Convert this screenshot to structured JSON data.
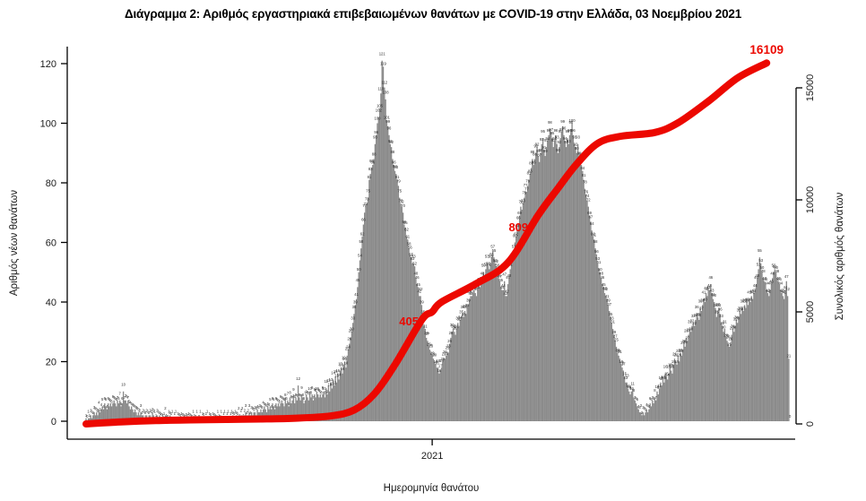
{
  "title": "Διάγραμμα 2: Αριθμός εργαστηριακά επιβεβαιωμένων θανάτων με COVID-19 στην Ελλάδα, 03 Νοεμβρίου 2021",
  "colors": {
    "bar": "#8a8a8a",
    "bar_label": "#2a2a2a",
    "line": "#ec0800",
    "annotation": "#ec0800",
    "axis": "#000000",
    "tick_text": "#1a1a1a"
  },
  "chart_data": {
    "type": "bar",
    "combo": "daily bars (left axis) + cumulative smooth line (right axis)",
    "x_axis": {
      "label": "Ημερομηνία θανάτου",
      "start": "2020-03",
      "end": "2021-11-03",
      "ticks": [
        {
          "label": "2021",
          "day": 297
        }
      ]
    },
    "left_axis": {
      "label": "Αριθμός νέων θανάτων",
      "ticks": [
        0,
        20,
        40,
        60,
        80,
        100,
        120
      ],
      "range": [
        0,
        126
      ]
    },
    "right_axis": {
      "label": "Συνολικός αριθμός θανάτων",
      "ticks": [
        0,
        5000,
        10000,
        15000
      ],
      "range": [
        0,
        16800
      ]
    },
    "bars": {
      "name": "Αριθμός νέων θανάτων (daily, estimated from plot)",
      "values": [
        1,
        0,
        1,
        1,
        2,
        1,
        2,
        3,
        2,
        3,
        2,
        4,
        3,
        4,
        5,
        4,
        6,
        5,
        4,
        6,
        5,
        6,
        5,
        6,
        7,
        6,
        5,
        7,
        6,
        7,
        5,
        6,
        10,
        7,
        7,
        6,
        7,
        5,
        4,
        5,
        4,
        3,
        4,
        3,
        2,
        3,
        2,
        3,
        2,
        2,
        1,
        2,
        2,
        1,
        2,
        2,
        1,
        3,
        2,
        1,
        1,
        2,
        1,
        2,
        1,
        0,
        1,
        1,
        2,
        1,
        0,
        1,
        2,
        1,
        1,
        0,
        1,
        1,
        0,
        1,
        0,
        1,
        1,
        0,
        1,
        0,
        0,
        1,
        1,
        0,
        1,
        0,
        1,
        1,
        0,
        1,
        0,
        0,
        1,
        0,
        1,
        0,
        0,
        1,
        1,
        0,
        1,
        0,
        0,
        1,
        0,
        1,
        0,
        1,
        1,
        0,
        1,
        0,
        1,
        1,
        0,
        1,
        1,
        0,
        1,
        1,
        2,
        1,
        1,
        2,
        1,
        2,
        1,
        2,
        2,
        1,
        2,
        3,
        2,
        2,
        3,
        2,
        3,
        2,
        3,
        3,
        2,
        4,
        3,
        3,
        4,
        3,
        4,
        5,
        4,
        3,
        5,
        4,
        5,
        4,
        6,
        5,
        4,
        6,
        5,
        6,
        5,
        6,
        7,
        6,
        5,
        8,
        6,
        7,
        5,
        8,
        6,
        7,
        9,
        6,
        8,
        7,
        12,
        8,
        7,
        9,
        8,
        6,
        7,
        9,
        8,
        7,
        10,
        8,
        9,
        7,
        9,
        8,
        10,
        9,
        8,
        9,
        8,
        9,
        10,
        8,
        11,
        9,
        12,
        10,
        13,
        11,
        14,
        12,
        15,
        13,
        16,
        14,
        17,
        18,
        16,
        19,
        20,
        18,
        22,
        24,
        26,
        28,
        30,
        33,
        36,
        39,
        41,
        45,
        50,
        54,
        58,
        62,
        66,
        70,
        72,
        73,
        75,
        81,
        83,
        85,
        86,
        88,
        93,
        96,
        100,
        102,
        105,
        110,
        121,
        119,
        112,
        108,
        101,
        99,
        96,
        93,
        92,
        88,
        86,
        84,
        83,
        81,
        79,
        75,
        73,
        72,
        70,
        66,
        65,
        62,
        61,
        58,
        56,
        55,
        53,
        53,
        52,
        48,
        46,
        45,
        42,
        42,
        39,
        35,
        32,
        31,
        28,
        27,
        25,
        24,
        23,
        22,
        21,
        20,
        19,
        18,
        18,
        16,
        17,
        18,
        20,
        21,
        21,
        22,
        23,
        23,
        26,
        28,
        30,
        31,
        30,
        29,
        31,
        33,
        32,
        34,
        35,
        36,
        35,
        37,
        36,
        38,
        39,
        41,
        42,
        42,
        43,
        44,
        43,
        42,
        44,
        46,
        45,
        47,
        48,
        50,
        48,
        51,
        53,
        52,
        51,
        53,
        55,
        57,
        55,
        53,
        52,
        50,
        48,
        47,
        45,
        44,
        44,
        47,
        42,
        42,
        46,
        48,
        51,
        53,
        55,
        57,
        60,
        62,
        64,
        66,
        69,
        72,
        71,
        73,
        75,
        77,
        77,
        79,
        81,
        83,
        85,
        88,
        86,
        88,
        90,
        92,
        89,
        87,
        90,
        93,
        95,
        91,
        89,
        92,
        94,
        96,
        98,
        97,
        95,
        92,
        94,
        96,
        93,
        90,
        92,
        95,
        97,
        99,
        96,
        94,
        92,
        95,
        93,
        96,
        98,
        100,
        96,
        93,
        92,
        90,
        93,
        89,
        88,
        86,
        84,
        81,
        78,
        76,
        74,
        72,
        69,
        67,
        64,
        62,
        61,
        58,
        56,
        53,
        51,
        50,
        48,
        46,
        45,
        43,
        42,
        41,
        39,
        37,
        35,
        33,
        31,
        29,
        27,
        25,
        23,
        22,
        21,
        19,
        18,
        17,
        15,
        13,
        13,
        11,
        10,
        9,
        10,
        11,
        8,
        7,
        6,
        5,
        4,
        3,
        3,
        2,
        3,
        2,
        3,
        4,
        3,
        4,
        6,
        5,
        7,
        6,
        8,
        7,
        10,
        9,
        11,
        13,
        12,
        14,
        13,
        16,
        15,
        14,
        16,
        18,
        17,
        16,
        19,
        21,
        20,
        19,
        22,
        20,
        23,
        22,
        24,
        26,
        25,
        28,
        27,
        29,
        31,
        30,
        32,
        33,
        32,
        34,
        36,
        35,
        34,
        38,
        37,
        39,
        41,
        40,
        43,
        42,
        44,
        44,
        46,
        43,
        41,
        40,
        38,
        35,
        37,
        38,
        36,
        33,
        32,
        30,
        31,
        28,
        27,
        26,
        25,
        26,
        29,
        31,
        30,
        32,
        34,
        33,
        35,
        37,
        36,
        38,
        37,
        39,
        38,
        40,
        39,
        41,
        40,
        42,
        41,
        43,
        44,
        46,
        48,
        51,
        55,
        53,
        50,
        48,
        47,
        46,
        44,
        43,
        42,
        44,
        46,
        48,
        50,
        51,
        50,
        48,
        47,
        46,
        44,
        43,
        42,
        41,
        44,
        47,
        42,
        21,
        0
      ]
    },
    "line": {
      "name": "Συνολικός αριθμός θανάτων (cumulative, estimated from plot)",
      "points": [
        [
          0,
          0
        ],
        [
          30,
          90
        ],
        [
          60,
          150
        ],
        [
          90,
          180
        ],
        [
          120,
          200
        ],
        [
          150,
          220
        ],
        [
          180,
          255
        ],
        [
          210,
          355
        ],
        [
          230,
          620
        ],
        [
          247,
          1320
        ],
        [
          265,
          2640
        ],
        [
          288,
          4640
        ],
        [
          297,
          5000
        ],
        [
          305,
          5440
        ],
        [
          334,
          6240
        ],
        [
          362,
          7200
        ],
        [
          388,
          9320
        ],
        [
          405,
          10520
        ],
        [
          421,
          11600
        ],
        [
          439,
          12520
        ],
        [
          459,
          12840
        ],
        [
          488,
          13010
        ],
        [
          508,
          13440
        ],
        [
          534,
          14400
        ],
        [
          559,
          15440
        ],
        [
          584,
          16109
        ]
      ],
      "final_value": 16109
    },
    "annotations": [
      {
        "text": "405",
        "day": 277,
        "value": 4560,
        "size": 13
      },
      {
        "text": "809",
        "day": 371,
        "value": 8760,
        "size": 13
      },
      {
        "text": "16109",
        "day": 584,
        "value": 16680,
        "size": 13.5
      }
    ]
  }
}
